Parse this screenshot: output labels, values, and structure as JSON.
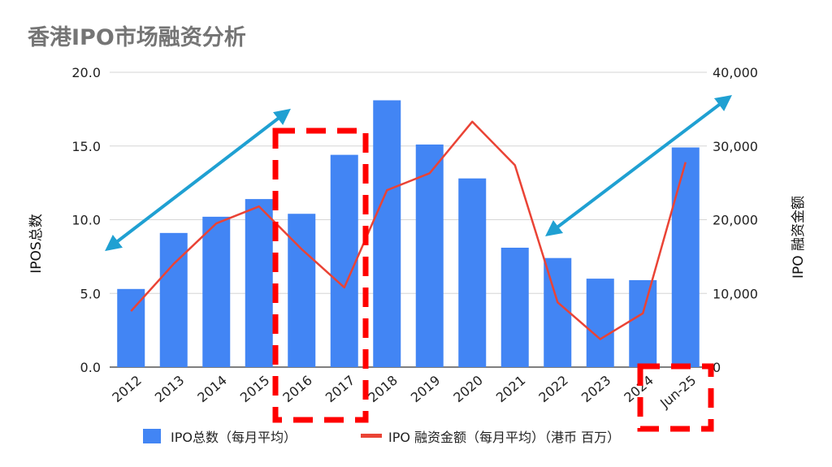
{
  "chart_data": {
    "type": "bar",
    "title": "香港IPO市场融资分析",
    "categories": [
      "2012",
      "2013",
      "2014",
      "2015",
      "2016",
      "2017",
      "2018",
      "2019",
      "2020",
      "2021",
      "2022",
      "2023",
      "2024",
      "Jun-25"
    ],
    "series": [
      {
        "name": "IPO总数（每月平均）",
        "type": "bar",
        "axis": "left",
        "color": "#4285f4",
        "values": [
          5.3,
          9.1,
          10.2,
          11.4,
          10.4,
          14.4,
          18.1,
          15.1,
          12.8,
          8.1,
          7.4,
          6.0,
          5.9,
          14.9
        ]
      },
      {
        "name": "IPO 融资金额（每月平均）（港币 百万）",
        "type": "line",
        "axis": "right",
        "color": "#ea4335",
        "values": [
          7600,
          14000,
          19500,
          21800,
          16000,
          10800,
          24000,
          26300,
          33300,
          27400,
          8800,
          3800,
          7300,
          27800
        ]
      }
    ],
    "ylabel": "IPOS总数",
    "y2label": "IPO 融资金额",
    "ylim": [
      0,
      20
    ],
    "y2lim": [
      0,
      40000
    ],
    "yticks": [
      "0.0",
      "5.0",
      "10.0",
      "15.0",
      "20.0"
    ],
    "y2ticks": [
      "0",
      "10,000",
      "20,000",
      "30,000",
      "40,000"
    ],
    "grid": true,
    "legend_position": "bottom",
    "annotation_colors": {
      "arrow": "#1fa0d2",
      "highlight_box": "#ff0000"
    }
  }
}
